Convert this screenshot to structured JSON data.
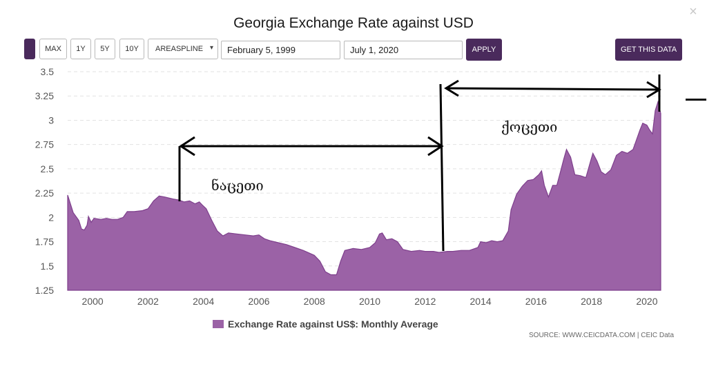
{
  "title": "Georgia Exchange Rate against USD",
  "toolbar": {
    "range_buttons": [
      "MAX",
      "1Y",
      "5Y",
      "10Y"
    ],
    "chart_type": "AREASPLINE",
    "start_date": "February 5, 1999",
    "end_date": "July 1, 2020",
    "apply_label": "APPLY",
    "get_data_label": "GET THIS DATA"
  },
  "legend": {
    "label": "Exchange Rate against US$: Monthly Average"
  },
  "source": "SOURCE: WWW.CEICDATA.COM | CEIC Data",
  "colors": {
    "area_fill": "#9b62a6",
    "area_stroke": "#7e3f8c",
    "brand": "#4a2a5c"
  },
  "annotations": {
    "label_1": "ნაცეთი",
    "label_2": "ქოცეთი"
  },
  "chart_data": {
    "type": "area",
    "title": "Georgia Exchange Rate against USD",
    "xlabel": "",
    "ylabel": "",
    "ylim": [
      1.25,
      3.5
    ],
    "xlim": [
      1999.1,
      2020.5
    ],
    "y_ticks": [
      "1.25",
      "1.5",
      "1.75",
      "2",
      "2.25",
      "2.5",
      "2.75",
      "3",
      "3.25",
      "3.5"
    ],
    "x_ticks": [
      "2000",
      "2002",
      "2004",
      "2006",
      "2008",
      "2010",
      "2012",
      "2014",
      "2016",
      "2018",
      "2020"
    ],
    "legend_position": "bottom",
    "grid": true,
    "series": [
      {
        "name": "Exchange Rate against US$: Monthly Average",
        "points": [
          [
            1999.1,
            2.23
          ],
          [
            1999.3,
            2.05
          ],
          [
            1999.5,
            1.97
          ],
          [
            1999.6,
            1.88
          ],
          [
            1999.7,
            1.87
          ],
          [
            1999.8,
            1.92
          ],
          [
            1999.85,
            2.01
          ],
          [
            1999.95,
            1.95
          ],
          [
            2000.05,
            1.99
          ],
          [
            2000.3,
            1.98
          ],
          [
            2000.5,
            1.99
          ],
          [
            2000.7,
            1.98
          ],
          [
            2000.9,
            1.98
          ],
          [
            2001.1,
            2.0
          ],
          [
            2001.25,
            2.06
          ],
          [
            2001.5,
            2.06
          ],
          [
            2001.8,
            2.07
          ],
          [
            2002.0,
            2.09
          ],
          [
            2002.2,
            2.17
          ],
          [
            2002.4,
            2.22
          ],
          [
            2002.6,
            2.21
          ],
          [
            2002.9,
            2.19
          ],
          [
            2003.1,
            2.18
          ],
          [
            2003.3,
            2.16
          ],
          [
            2003.5,
            2.17
          ],
          [
            2003.7,
            2.14
          ],
          [
            2003.85,
            2.16
          ],
          [
            2003.95,
            2.13
          ],
          [
            2004.1,
            2.09
          ],
          [
            2004.3,
            1.97
          ],
          [
            2004.5,
            1.86
          ],
          [
            2004.7,
            1.81
          ],
          [
            2004.9,
            1.84
          ],
          [
            2005.2,
            1.83
          ],
          [
            2005.5,
            1.82
          ],
          [
            2005.8,
            1.81
          ],
          [
            2006.0,
            1.82
          ],
          [
            2006.2,
            1.78
          ],
          [
            2006.4,
            1.76
          ],
          [
            2006.7,
            1.74
          ],
          [
            2007.0,
            1.72
          ],
          [
            2007.3,
            1.69
          ],
          [
            2007.6,
            1.66
          ],
          [
            2008.0,
            1.61
          ],
          [
            2008.2,
            1.55
          ],
          [
            2008.4,
            1.44
          ],
          [
            2008.6,
            1.41
          ],
          [
            2008.8,
            1.41
          ],
          [
            2008.95,
            1.55
          ],
          [
            2009.1,
            1.66
          ],
          [
            2009.4,
            1.68
          ],
          [
            2009.7,
            1.67
          ],
          [
            2010.0,
            1.69
          ],
          [
            2010.2,
            1.74
          ],
          [
            2010.35,
            1.83
          ],
          [
            2010.45,
            1.84
          ],
          [
            2010.6,
            1.77
          ],
          [
            2010.8,
            1.78
          ],
          [
            2011.0,
            1.75
          ],
          [
            2011.2,
            1.67
          ],
          [
            2011.5,
            1.65
          ],
          [
            2011.8,
            1.66
          ],
          [
            2012.0,
            1.65
          ],
          [
            2012.3,
            1.65
          ],
          [
            2012.5,
            1.64
          ],
          [
            2012.8,
            1.65
          ],
          [
            2013.0,
            1.65
          ],
          [
            2013.3,
            1.66
          ],
          [
            2013.6,
            1.66
          ],
          [
            2013.9,
            1.69
          ],
          [
            2014.0,
            1.75
          ],
          [
            2014.2,
            1.74
          ],
          [
            2014.4,
            1.76
          ],
          [
            2014.6,
            1.75
          ],
          [
            2014.8,
            1.76
          ],
          [
            2015.0,
            1.86
          ],
          [
            2015.1,
            2.08
          ],
          [
            2015.3,
            2.24
          ],
          [
            2015.5,
            2.32
          ],
          [
            2015.7,
            2.38
          ],
          [
            2015.9,
            2.39
          ],
          [
            2016.1,
            2.44
          ],
          [
            2016.2,
            2.48
          ],
          [
            2016.3,
            2.33
          ],
          [
            2016.45,
            2.21
          ],
          [
            2016.6,
            2.33
          ],
          [
            2016.75,
            2.33
          ],
          [
            2016.9,
            2.49
          ],
          [
            2017.0,
            2.6
          ],
          [
            2017.1,
            2.7
          ],
          [
            2017.25,
            2.62
          ],
          [
            2017.4,
            2.44
          ],
          [
            2017.6,
            2.43
          ],
          [
            2017.8,
            2.41
          ],
          [
            2017.95,
            2.56
          ],
          [
            2018.05,
            2.66
          ],
          [
            2018.2,
            2.58
          ],
          [
            2018.35,
            2.47
          ],
          [
            2018.5,
            2.44
          ],
          [
            2018.7,
            2.49
          ],
          [
            2018.9,
            2.64
          ],
          [
            2019.1,
            2.68
          ],
          [
            2019.3,
            2.66
          ],
          [
            2019.5,
            2.7
          ],
          [
            2019.6,
            2.78
          ],
          [
            2019.75,
            2.9
          ],
          [
            2019.85,
            2.97
          ],
          [
            2020.0,
            2.95
          ],
          [
            2020.1,
            2.9
          ],
          [
            2020.2,
            2.86
          ],
          [
            2020.3,
            3.1
          ],
          [
            2020.4,
            3.19
          ],
          [
            2020.5,
            3.07
          ]
        ]
      }
    ]
  }
}
